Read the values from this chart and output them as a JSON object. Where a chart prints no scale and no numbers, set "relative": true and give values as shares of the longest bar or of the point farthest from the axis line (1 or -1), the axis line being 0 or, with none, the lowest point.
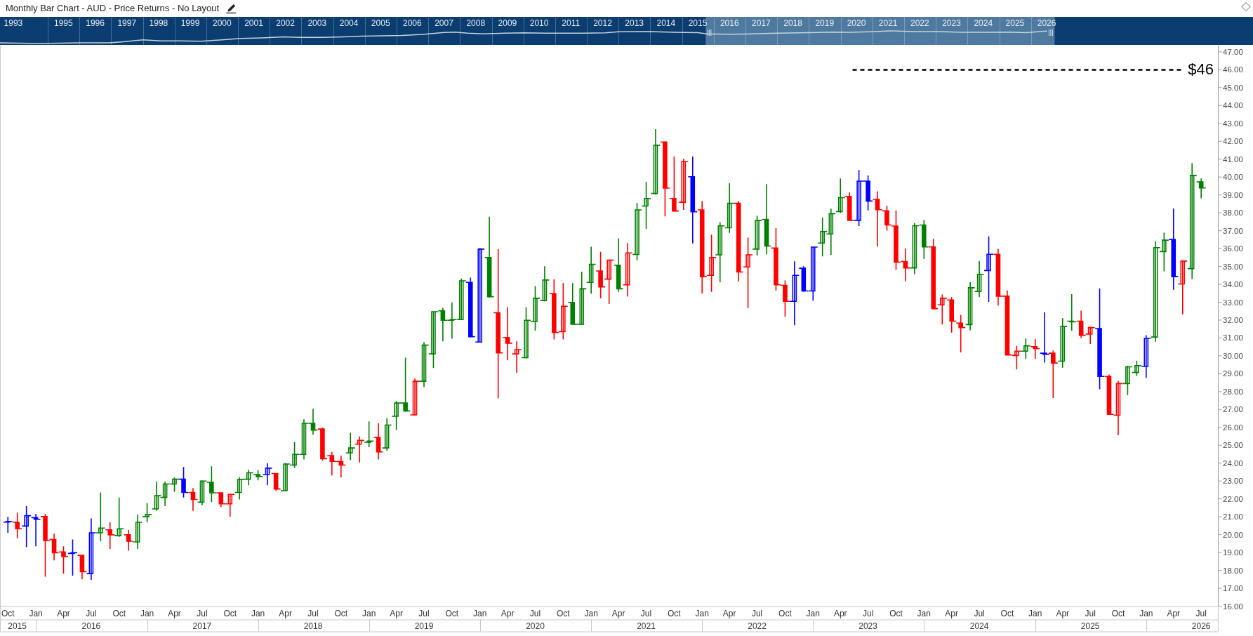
{
  "chart_data": [
    {
      "type": "line",
      "title": "Monthly Bar Chart - AUD - Price Returns - No Layout",
      "relative": true,
      "color": "#c8d2dc",
      "tick_labels": "x",
      "grid": "x",
      "x": [
        "1993-07",
        "1994-10",
        "1996-01",
        "1996-12",
        "1997-05",
        "1998-01",
        "1998-08",
        "1999-03",
        "1999-11",
        "2000-07",
        "2001-02",
        "2001-10",
        "2002-06",
        "2003-01",
        "2003-09",
        "2004-05",
        "2004-12",
        "2005-08",
        "2006-03",
        "2006-11",
        "2007-07",
        "2007-11",
        "2008-04",
        "2008-10",
        "2009-06",
        "2010-01",
        "2010-09",
        "2011-12",
        "2012-08",
        "2013-01",
        "2014-01",
        "2014-10",
        "2015-07",
        "2015-11",
        "2016-07",
        "2017-01",
        "2018-01",
        "2019-01",
        "2019-10",
        "2020-05",
        "2021-02",
        "2021-08",
        "2022-05",
        "2023-02",
        "2023-11",
        "2024-08",
        "2025-05",
        "2025-11",
        "2026-07"
      ],
      "values": [
        0.05,
        0,
        0.05,
        0.05,
        0.13,
        0.29,
        0.21,
        0.21,
        0.18,
        0.29,
        0.4,
        0.45,
        0.53,
        0.48,
        0.48,
        0.53,
        0.58,
        0.61,
        0.64,
        0.72,
        0.88,
        0.9,
        0.82,
        0.77,
        0.82,
        0.85,
        0.82,
        0.82,
        0.85,
        0.93,
        0.94,
        0.89,
        0.86,
        0.75,
        0.73,
        0.75,
        0.82,
        0.86,
        0.9,
        0.89,
        0.94,
        1,
        0.94,
        0.95,
        0.89,
        0.89,
        0.9,
        0.86,
        0.98
      ],
      "xlim": [
        "1993-07",
        "2033-01"
      ],
      "xticks": [
        {
          "value": "1993-12",
          "label": "1993"
        },
        {
          "value": "1995-07",
          "label": "1995"
        },
        {
          "value": "1996-07",
          "label": "1996"
        },
        {
          "value": "1997-07",
          "label": "1997"
        },
        {
          "value": "1998-07",
          "label": "1998"
        },
        {
          "value": "1999-07",
          "label": "1999"
        },
        {
          "value": "2000-07",
          "label": "2000"
        },
        {
          "value": "2001-07",
          "label": "2001"
        },
        {
          "value": "2002-07",
          "label": "2002"
        },
        {
          "value": "2003-07",
          "label": "2003"
        },
        {
          "value": "2004-07",
          "label": "2004"
        },
        {
          "value": "2005-07",
          "label": "2005"
        },
        {
          "value": "2006-07",
          "label": "2006"
        },
        {
          "value": "2007-07",
          "label": "2007"
        },
        {
          "value": "2008-07",
          "label": "2008"
        },
        {
          "value": "2009-07",
          "label": "2009"
        },
        {
          "value": "2010-07",
          "label": "2010"
        },
        {
          "value": "2011-07",
          "label": "2011"
        },
        {
          "value": "2012-07",
          "label": "2012"
        },
        {
          "value": "2013-07",
          "label": "2013"
        },
        {
          "value": "2014-07",
          "label": "2014"
        },
        {
          "value": "2015-07",
          "label": "2015"
        },
        {
          "value": "2016-07",
          "label": "2016"
        },
        {
          "value": "2017-07",
          "label": "2017"
        },
        {
          "value": "2018-07",
          "label": "2018"
        },
        {
          "value": "2019-07",
          "label": "2019"
        },
        {
          "value": "2020-07",
          "label": "2020"
        },
        {
          "value": "2021-07",
          "label": "2021"
        },
        {
          "value": "2022-07",
          "label": "2022"
        },
        {
          "value": "2023-07",
          "label": "2023"
        },
        {
          "value": "2024-07",
          "label": "2024"
        },
        {
          "value": "2025-07",
          "label": "2025"
        },
        {
          "value": "2026-07",
          "label": "2026"
        },
        {
          "value": "1995",
          "label": null
        },
        {
          "value": "1996",
          "label": null
        },
        {
          "value": "1997",
          "label": null
        },
        {
          "value": "1998",
          "label": null
        },
        {
          "value": "1999",
          "label": null
        },
        {
          "value": "2000",
          "label": null
        },
        {
          "value": "2001",
          "label": null
        },
        {
          "value": "2002",
          "label": null
        },
        {
          "value": "2003",
          "label": null
        },
        {
          "value": "2004",
          "label": null
        },
        {
          "value": "2005",
          "label": null
        },
        {
          "value": "2006",
          "label": null
        },
        {
          "value": "2007",
          "label": null
        },
        {
          "value": "2008",
          "label": null
        },
        {
          "value": "2009",
          "label": null
        },
        {
          "value": "2010",
          "label": null
        },
        {
          "value": "2011",
          "label": null
        },
        {
          "value": "2012",
          "label": null
        },
        {
          "value": "2013",
          "label": null
        },
        {
          "value": "2014",
          "label": null
        },
        {
          "value": "2015",
          "label": null
        },
        {
          "value": "2016",
          "label": null
        },
        {
          "value": "2017",
          "label": null
        },
        {
          "value": "2018",
          "label": null
        },
        {
          "value": "2019",
          "label": null
        },
        {
          "value": "2020",
          "label": null
        },
        {
          "value": "2021",
          "label": null
        },
        {
          "value": "2022",
          "label": null
        },
        {
          "value": "2023",
          "label": null
        },
        {
          "value": "2024",
          "label": null
        },
        {
          "value": "2025",
          "label": null
        },
        {
          "value": "2026",
          "label": null
        }
      ],
      "bands": [
        {
          "axis": "x",
          "from": "2015-10",
          "to": "2026-10",
          "color": "#4f7aa0"
        }
      ]
    },
    {
      "type": "candlestick",
      "x": [
        "2015-10",
        "2015-11",
        "2015-12",
        "2016-01",
        "2016-02",
        "2016-03",
        "2016-04",
        "2016-05",
        "2016-06",
        "2016-07",
        "2016-08",
        "2016-09",
        "2016-10",
        "2016-11",
        "2016-12",
        "2017-01",
        "2017-02",
        "2017-03",
        "2017-04",
        "2017-05",
        "2017-06",
        "2017-07",
        "2017-08",
        "2017-09",
        "2017-10",
        "2017-11",
        "2017-12",
        "2018-01",
        "2018-02",
        "2018-03",
        "2018-04",
        "2018-05",
        "2018-06",
        "2018-07",
        "2018-08",
        "2018-09",
        "2018-10",
        "2018-11",
        "2018-12",
        "2019-01",
        "2019-02",
        "2019-03",
        "2019-04",
        "2019-05",
        "2019-06",
        "2019-07",
        "2019-08",
        "2019-09",
        "2019-10",
        "2019-11",
        "2019-12",
        "2020-01",
        "2020-02",
        "2020-03",
        "2020-04",
        "2020-05",
        "2020-06",
        "2020-07",
        "2020-08",
        "2020-09",
        "2020-10",
        "2020-11",
        "2020-12",
        "2021-01",
        "2021-02",
        "2021-03",
        "2021-04",
        "2021-05",
        "2021-06",
        "2021-07",
        "2021-08",
        "2021-09",
        "2021-10",
        "2021-11",
        "2021-12",
        "2022-01",
        "2022-02",
        "2022-03",
        "2022-04",
        "2022-05",
        "2022-06",
        "2022-07",
        "2022-08",
        "2022-09",
        "2022-10",
        "2022-11",
        "2022-12",
        "2023-01",
        "2023-02",
        "2023-03",
        "2023-04",
        "2023-05",
        "2023-06",
        "2023-07",
        "2023-08",
        "2023-09",
        "2023-10",
        "2023-11",
        "2023-12",
        "2024-01",
        "2024-02",
        "2024-03",
        "2024-04",
        "2024-05",
        "2024-06",
        "2024-07",
        "2024-08",
        "2024-09",
        "2024-10",
        "2024-11",
        "2024-12",
        "2025-01",
        "2025-02",
        "2025-03",
        "2025-04",
        "2025-05",
        "2025-06",
        "2025-07",
        "2025-08",
        "2025-09",
        "2025-10",
        "2025-11",
        "2025-12",
        "2026-01",
        "2026-02",
        "2026-03",
        "2026-04",
        "2026-05",
        "2026-06",
        "2026-07"
      ],
      "ohlc": [
        [
          20.7,
          21.0,
          20.1,
          20.74
        ],
        [
          20.69,
          21.23,
          19.8,
          20.33
        ],
        [
          20.48,
          21.59,
          19.31,
          21.06
        ],
        [
          20.95,
          21.16,
          19.35,
          20.86
        ],
        [
          21.01,
          21.16,
          17.65,
          19.67
        ],
        [
          19.73,
          20.05,
          18.56,
          18.99
        ],
        [
          19.03,
          19.35,
          17.82,
          18.78
        ],
        [
          18.95,
          19.73,
          17.71,
          18.99
        ],
        [
          18.84,
          18.88,
          17.5,
          17.93
        ],
        [
          17.82,
          20.91,
          17.46,
          20.1
        ],
        [
          20.1,
          22.36,
          19.63,
          20.37
        ],
        [
          20.27,
          20.69,
          19.2,
          19.99
        ],
        [
          19.95,
          22.08,
          19.88,
          20.33
        ],
        [
          19.99,
          20.27,
          19.1,
          19.63
        ],
        [
          19.59,
          21.12,
          19.2,
          20.69
        ],
        [
          21.01,
          21.76,
          20.69,
          21.12
        ],
        [
          21.44,
          22.97,
          21.33,
          22.18
        ],
        [
          22.08,
          22.97,
          21.59,
          22.83
        ],
        [
          22.83,
          23.19,
          22.4,
          23.1
        ],
        [
          23.1,
          23.78,
          22.08,
          22.36
        ],
        [
          22.36,
          22.61,
          21.33,
          21.97
        ],
        [
          21.82,
          23.04,
          21.65,
          23.0
        ],
        [
          22.93,
          23.82,
          21.82,
          22.34
        ],
        [
          22.34,
          22.36,
          21.55,
          21.72
        ],
        [
          21.72,
          22.25,
          21.01,
          22.25
        ],
        [
          22.36,
          23.21,
          21.97,
          23.08
        ],
        [
          23.1,
          23.63,
          22.76,
          23.46
        ],
        [
          23.36,
          23.61,
          23.04,
          23.25
        ],
        [
          23.36,
          24.0,
          22.76,
          23.72
        ],
        [
          23.42,
          23.42,
          22.46,
          22.55
        ],
        [
          22.46,
          24.0,
          22.46,
          23.95
        ],
        [
          23.89,
          25.17,
          23.72,
          24.49
        ],
        [
          24.49,
          26.45,
          24.21,
          26.23
        ],
        [
          26.23,
          27.04,
          25.59,
          25.85
        ],
        [
          25.91,
          25.98,
          24.14,
          24.25
        ],
        [
          24.42,
          24.63,
          23.31,
          24.1
        ],
        [
          24.1,
          24.42,
          23.19,
          23.89
        ],
        [
          24.57,
          25.7,
          24.17,
          24.85
        ],
        [
          25.06,
          25.49,
          24.04,
          25.27
        ],
        [
          25.17,
          26.34,
          24.89,
          25.23
        ],
        [
          25.44,
          26.23,
          24.21,
          24.63
        ],
        [
          24.85,
          26.51,
          24.7,
          26.13
        ],
        [
          26.62,
          27.47,
          25.85,
          27.36
        ],
        [
          27.36,
          29.9,
          26.87,
          26.92
        ],
        [
          26.7,
          28.73,
          26.66,
          28.58
        ],
        [
          28.58,
          30.77,
          28.26,
          30.6
        ],
        [
          30.11,
          32.47,
          29.32,
          32.47
        ],
        [
          32.52,
          32.69,
          30.81,
          31.99
        ],
        [
          31.99,
          32.99,
          30.96,
          32.03
        ],
        [
          32.03,
          34.33,
          32.03,
          34.2
        ],
        [
          34.11,
          34.37,
          31.03,
          31.07
        ],
        [
          30.77,
          36.03,
          30.77,
          35.97
        ],
        [
          35.5,
          37.78,
          33.26,
          33.31
        ],
        [
          32.41,
          35.97,
          27.62,
          30.17
        ],
        [
          31.03,
          32.73,
          29.75,
          30.71
        ],
        [
          30.11,
          30.81,
          29.05,
          30.35
        ],
        [
          29.9,
          32.73,
          29.85,
          31.99
        ],
        [
          31.92,
          33.9,
          31.41,
          33.22
        ],
        [
          33.09,
          35.01,
          33.05,
          34.24
        ],
        [
          33.48,
          34.29,
          30.92,
          31.3
        ],
        [
          31.35,
          34.07,
          30.92,
          32.77
        ],
        [
          32.99,
          34.07,
          31.77,
          31.77
        ],
        [
          31.77,
          34.71,
          31.77,
          33.75
        ],
        [
          34.11,
          36.1,
          33.48,
          35.12
        ],
        [
          34.75,
          35.82,
          33.22,
          33.86
        ],
        [
          34.29,
          35.39,
          32.9,
          35.35
        ],
        [
          35.07,
          36.57,
          33.58,
          33.75
        ],
        [
          33.97,
          36.31,
          33.31,
          35.76
        ],
        [
          35.67,
          38.55,
          35.35,
          38.16
        ],
        [
          38.38,
          39.72,
          37.1,
          38.8
        ],
        [
          39.08,
          42.68,
          39.02,
          41.78
        ],
        [
          41.96,
          42.0,
          37.8,
          39.38
        ],
        [
          38.8,
          41.15,
          38.06,
          38.1
        ],
        [
          38.59,
          41.02,
          38.16,
          40.87
        ],
        [
          40.02,
          41.15,
          36.29,
          38.06
        ],
        [
          38.16,
          38.65,
          33.48,
          34.43
        ],
        [
          34.5,
          36.78,
          33.58,
          35.5
        ],
        [
          35.65,
          37.48,
          34.11,
          37.27
        ],
        [
          37.16,
          39.65,
          36.88,
          38.53
        ],
        [
          38.53,
          38.65,
          34.16,
          34.69
        ],
        [
          34.97,
          36.61,
          32.67,
          35.65
        ],
        [
          35.97,
          37.84,
          35.61,
          37.57
        ],
        [
          37.63,
          39.61,
          35.67,
          36.14
        ],
        [
          36.03,
          37.14,
          33.65,
          33.97
        ],
        [
          33.94,
          34.22,
          32.2,
          33.05
        ],
        [
          33.05,
          35.29,
          31.71,
          34.5
        ],
        [
          34.9,
          35.01,
          33.58,
          33.63
        ],
        [
          33.63,
          36.1,
          33.09,
          36.08
        ],
        [
          36.31,
          37.74,
          35.56,
          36.95
        ],
        [
          36.82,
          38.23,
          35.65,
          37.95
        ],
        [
          38.07,
          39.92,
          38.0,
          38.85
        ],
        [
          38.92,
          39.13,
          37.58,
          37.58
        ],
        [
          37.58,
          40.39,
          37.26,
          39.77
        ],
        [
          39.77,
          40.09,
          38.13,
          38.66
        ],
        [
          38.75,
          39.2,
          36.11,
          38.17
        ],
        [
          38.11,
          38.39,
          37.0,
          37.32
        ],
        [
          37.26,
          38.13,
          34.81,
          35.24
        ],
        [
          35.28,
          36.0,
          34.17,
          34.92
        ],
        [
          34.92,
          37.43,
          34.56,
          37.28
        ],
        [
          37.32,
          37.6,
          35.41,
          36.09
        ],
        [
          36.09,
          36.54,
          32.6,
          32.64
        ],
        [
          32.85,
          33.43,
          31.75,
          33.22
        ],
        [
          33.13,
          33.28,
          31.3,
          31.94
        ],
        [
          31.83,
          32.28,
          30.19,
          31.58
        ],
        [
          31.75,
          34.13,
          31.43,
          33.81
        ],
        [
          33.6,
          35.3,
          33.28,
          34.56
        ],
        [
          34.77,
          36.68,
          33.02,
          35.68
        ],
        [
          35.68,
          35.98,
          32.81,
          33.34
        ],
        [
          33.34,
          33.66,
          30.02,
          30.05
        ],
        [
          30.02,
          30.56,
          29.24,
          30.26
        ],
        [
          30.26,
          30.98,
          29.83,
          30.56
        ],
        [
          30.51,
          30.94,
          29.83,
          30.41
        ],
        [
          30.15,
          32.43,
          29.62,
          30.09
        ],
        [
          30.15,
          30.3,
          27.64,
          29.6
        ],
        [
          29.7,
          32.11,
          29.34,
          31.64
        ],
        [
          31.94,
          33.45,
          31.41,
          31.9
        ],
        [
          31.94,
          32.53,
          31.0,
          31.15
        ],
        [
          31.22,
          31.64,
          30.66,
          31.58
        ],
        [
          31.53,
          33.77,
          28.13,
          28.85
        ],
        [
          28.85,
          28.96,
          26.73,
          26.73
        ],
        [
          26.68,
          28.6,
          25.56,
          28.45
        ],
        [
          28.45,
          29.45,
          27.81,
          29.39
        ],
        [
          29.07,
          29.73,
          28.88,
          29.45
        ],
        [
          29.41,
          31.15,
          28.77,
          30.98
        ],
        [
          31.05,
          36.41,
          30.79,
          36.05
        ],
        [
          35.83,
          36.9,
          34.73,
          36.47
        ],
        [
          36.51,
          38.24,
          33.7,
          34.43
        ],
        [
          34.02,
          35.3,
          32.32,
          35.3
        ],
        [
          34.88,
          40.77,
          34.3,
          40.09
        ],
        [
          39.73,
          39.92,
          38.81,
          39.39
        ]
      ],
      "colors": [
        "#0000ff",
        "#ff0000",
        "#0000ff",
        "#0000ff",
        "#ff0000",
        "#ff0000",
        "#ff0000",
        "#0000ff",
        "#ff0000",
        "#0000ff",
        "#008000",
        "#ff0000",
        "#008000",
        "#ff0000",
        "#008000",
        "#008000",
        "#008000",
        "#008000",
        "#008000",
        "#0000ff",
        "#ff0000",
        "#008000",
        "#008000",
        "#ff0000",
        "#ff0000",
        "#008000",
        "#008000",
        "#008000",
        "#0000ff",
        "#ff0000",
        "#008000",
        "#008000",
        "#008000",
        "#008000",
        "#ff0000",
        "#ff0000",
        "#ff0000",
        "#008000",
        "#ff0000",
        "#008000",
        "#ff0000",
        "#008000",
        "#008000",
        "#008000",
        "#ff0000",
        "#008000",
        "#008000",
        "#008000",
        "#008000",
        "#008000",
        "#0000ff",
        "#0000ff",
        "#008000",
        "#ff0000",
        "#ff0000",
        "#ff0000",
        "#008000",
        "#008000",
        "#008000",
        "#ff0000",
        "#ff0000",
        "#008000",
        "#008000",
        "#008000",
        "#ff0000",
        "#ff0000",
        "#008000",
        "#ff0000",
        "#008000",
        "#008000",
        "#008000",
        "#ff0000",
        "#ff0000",
        "#ff0000",
        "#0000ff",
        "#ff0000",
        "#ff0000",
        "#008000",
        "#008000",
        "#ff0000",
        "#ff0000",
        "#008000",
        "#008000",
        "#ff0000",
        "#ff0000",
        "#0000ff",
        "#0000ff",
        "#0000ff",
        "#008000",
        "#008000",
        "#008000",
        "#ff0000",
        "#0000ff",
        "#0000ff",
        "#ff0000",
        "#ff0000",
        "#ff0000",
        "#ff0000",
        "#008000",
        "#008000",
        "#ff0000",
        "#ff0000",
        "#ff0000",
        "#ff0000",
        "#008000",
        "#008000",
        "#0000ff",
        "#ff0000",
        "#ff0000",
        "#ff0000",
        "#008000",
        "#ff0000",
        "#0000ff",
        "#ff0000",
        "#008000",
        "#008000",
        "#ff0000",
        "#ff0000",
        "#0000ff",
        "#ff0000",
        "#ff0000",
        "#008000",
        "#008000",
        "#0000ff",
        "#008000",
        "#008000",
        "#0000ff",
        "#ff0000",
        "#008000",
        "#008000"
      ],
      "xlim": [
        "2015-09-05",
        "2026-08-25"
      ],
      "xticks": [
        {
          "value": "2015-10",
          "label": "Oct"
        },
        {
          "value": "2016-01",
          "label": "Jan"
        },
        {
          "value": "2016-04",
          "label": "Apr"
        },
        {
          "value": "2016-07",
          "label": "Jul"
        },
        {
          "value": "2016-10",
          "label": "Oct"
        },
        {
          "value": "2017-01",
          "label": "Jan"
        },
        {
          "value": "2017-04",
          "label": "Apr"
        },
        {
          "value": "2017-07",
          "label": "Jul"
        },
        {
          "value": "2017-10",
          "label": "Oct"
        },
        {
          "value": "2018-01",
          "label": "Jan"
        },
        {
          "value": "2018-04",
          "label": "Apr"
        },
        {
          "value": "2018-07",
          "label": "Jul"
        },
        {
          "value": "2018-10",
          "label": "Oct"
        },
        {
          "value": "2019-01",
          "label": "Jan"
        },
        {
          "value": "2019-04",
          "label": "Apr"
        },
        {
          "value": "2019-07",
          "label": "Jul"
        },
        {
          "value": "2019-10",
          "label": "Oct"
        },
        {
          "value": "2020-01",
          "label": "Jan"
        },
        {
          "value": "2020-04",
          "label": "Apr"
        },
        {
          "value": "2020-07",
          "label": "Jul"
        },
        {
          "value": "2020-10",
          "label": "Oct"
        },
        {
          "value": "2021-01",
          "label": "Jan"
        },
        {
          "value": "2021-04",
          "label": "Apr"
        },
        {
          "value": "2021-07",
          "label": "Jul"
        },
        {
          "value": "2021-10",
          "label": "Oct"
        },
        {
          "value": "2022-01",
          "label": "Jan"
        },
        {
          "value": "2022-04",
          "label": "Apr"
        },
        {
          "value": "2022-07",
          "label": "Jul"
        },
        {
          "value": "2022-10",
          "label": "Oct"
        },
        {
          "value": "2023-01",
          "label": "Jan"
        },
        {
          "value": "2023-04",
          "label": "Apr"
        },
        {
          "value": "2023-07",
          "label": "Jul"
        },
        {
          "value": "2023-10",
          "label": "Oct"
        },
        {
          "value": "2024-01",
          "label": "Jan"
        },
        {
          "value": "2024-04",
          "label": "Apr"
        },
        {
          "value": "2024-07",
          "label": "Jul"
        },
        {
          "value": "2024-10",
          "label": "Oct"
        },
        {
          "value": "2025-01",
          "label": "Jan"
        },
        {
          "value": "2025-04",
          "label": "Apr"
        },
        {
          "value": "2025-07",
          "label": "Jul"
        },
        {
          "value": "2025-10",
          "label": "Oct"
        },
        {
          "value": "2026-01",
          "label": "Jan"
        },
        {
          "value": "2026-04",
          "label": "Apr"
        },
        {
          "value": "2026-07",
          "label": "Jul"
        }
      ],
      "x2lim": [
        "2015-09-05",
        "2026-08-25"
      ],
      "x2ticks": [
        {
          "value": "2015-11",
          "label": "2015"
        },
        {
          "value": "2016-07",
          "label": "2016"
        },
        {
          "value": "2017-07",
          "label": "2017"
        },
        {
          "value": "2018-07",
          "label": "2018"
        },
        {
          "value": "2019-07",
          "label": "2019"
        },
        {
          "value": "2020-07",
          "label": "2020"
        },
        {
          "value": "2021-07",
          "label": "2021"
        },
        {
          "value": "2022-07",
          "label": "2022"
        },
        {
          "value": "2023-07",
          "label": "2023"
        },
        {
          "value": "2024-07",
          "label": "2024"
        },
        {
          "value": "2025-07",
          "label": "2025"
        },
        {
          "value": "2026-07",
          "label": "2026"
        }
      ],
      "ylim": [
        16,
        47.35
      ],
      "yticks": [
        {
          "value": 16,
          "label": "16.00"
        },
        {
          "value": 17,
          "label": "17.00"
        },
        {
          "value": 18,
          "label": "18.00"
        },
        {
          "value": 19,
          "label": "19.00"
        },
        {
          "value": 20,
          "label": "20.00"
        },
        {
          "value": 21,
          "label": "21.00"
        },
        {
          "value": 22,
          "label": "22.00"
        },
        {
          "value": 23,
          "label": "23.00"
        },
        {
          "value": 24,
          "label": "24.00"
        },
        {
          "value": 25,
          "label": "25.00"
        },
        {
          "value": 26,
          "label": "26.00"
        },
        {
          "value": 27,
          "label": "27.00"
        },
        {
          "value": 28,
          "label": "28.00"
        },
        {
          "value": 29,
          "label": "29.00"
        },
        {
          "value": 30,
          "label": "30.00"
        },
        {
          "value": 31,
          "label": "31.00"
        },
        {
          "value": 32,
          "label": "32.00"
        },
        {
          "value": 33,
          "label": "33.00"
        },
        {
          "value": 34,
          "label": "34.00"
        },
        {
          "value": 35,
          "label": "35.00"
        },
        {
          "value": 36,
          "label": "36.00"
        },
        {
          "value": 37,
          "label": "37.00"
        },
        {
          "value": 38,
          "label": "38.00"
        },
        {
          "value": 39,
          "label": "39.00"
        },
        {
          "value": 40,
          "label": "40.00"
        },
        {
          "value": 41,
          "label": "41.00"
        },
        {
          "value": 42,
          "label": "42.00"
        },
        {
          "value": 43,
          "label": "43.00"
        },
        {
          "value": 44,
          "label": "44.00"
        },
        {
          "value": 45,
          "label": "45.00"
        },
        {
          "value": 46,
          "label": "46.00"
        },
        {
          "value": 47,
          "label": "47.00"
        }
      ],
      "ref_lines": [
        {
          "axis": "y",
          "value": 46,
          "label": "$46",
          "color": "#000000",
          "line_style": "dashed"
        }
      ]
    }
  ]
}
